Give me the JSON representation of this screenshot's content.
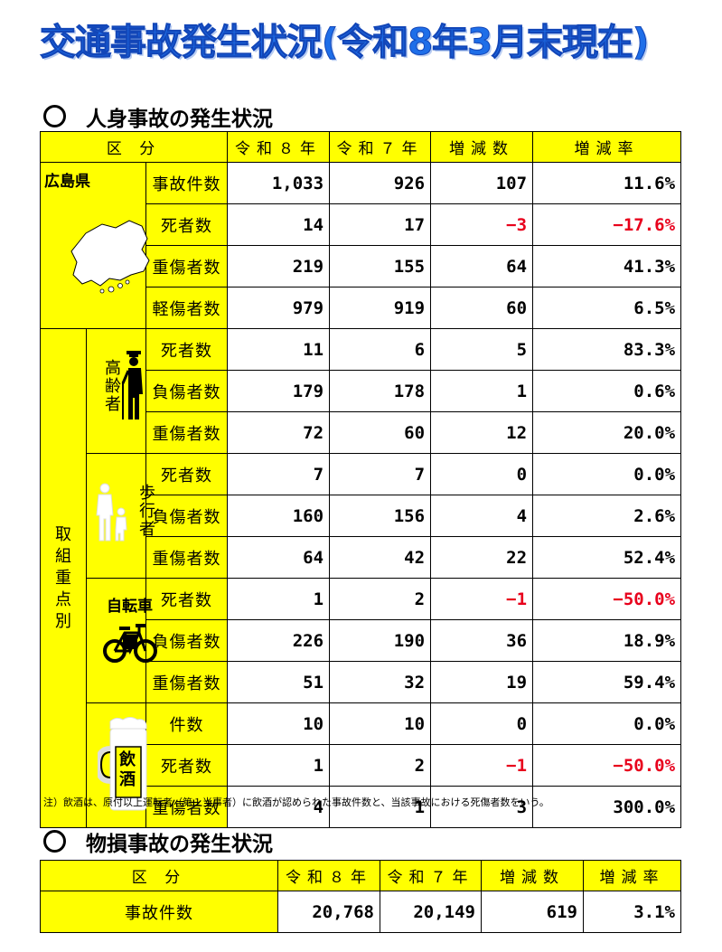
{
  "title": "交通事故発生状況(令和8年3月末現在)",
  "section1": "人身事故の発生状況",
  "section2": "物損事故の発生状況",
  "headers": {
    "category": "区 分",
    "r8": "令和８年",
    "r7": "令和７年",
    "diff": "増減数",
    "rate": "増減率"
  },
  "pref": {
    "name": "広島県",
    "rows": [
      {
        "label": "事故件数",
        "r8": "1,033",
        "r7": "926",
        "diff": "107",
        "rate": "11.6%"
      },
      {
        "label": "死者数",
        "r8": "14",
        "r7": "17",
        "diff": "−3",
        "rate": "−17.6%"
      },
      {
        "label": "重傷者数",
        "r8": "219",
        "r7": "155",
        "diff": "64",
        "rate": "41.3%"
      },
      {
        "label": "軽傷者数",
        "r8": "979",
        "r7": "919",
        "diff": "60",
        "rate": "6.5%"
      }
    ]
  },
  "focus_label": "取組重点別",
  "elderly": {
    "name": "高齢者",
    "rows": [
      {
        "label": "死者数",
        "r8": "11",
        "r7": "6",
        "diff": "5",
        "rate": "83.3%"
      },
      {
        "label": "負傷者数",
        "r8": "179",
        "r7": "178",
        "diff": "1",
        "rate": "0.6%"
      },
      {
        "label": "重傷者数",
        "r8": "72",
        "r7": "60",
        "diff": "12",
        "rate": "20.0%"
      }
    ]
  },
  "pedestrian": {
    "name": "歩行者",
    "rows": [
      {
        "label": "死者数",
        "r8": "7",
        "r7": "7",
        "diff": "0",
        "rate": "0.0%"
      },
      {
        "label": "負傷者数",
        "r8": "160",
        "r7": "156",
        "diff": "4",
        "rate": "2.6%"
      },
      {
        "label": "重傷者数",
        "r8": "64",
        "r7": "42",
        "diff": "22",
        "rate": "52.4%"
      }
    ]
  },
  "bicycle": {
    "name": "自転車",
    "rows": [
      {
        "label": "死者数",
        "r8": "1",
        "r7": "2",
        "diff": "−1",
        "rate": "−50.0%"
      },
      {
        "label": "負傷者数",
        "r8": "226",
        "r7": "190",
        "diff": "36",
        "rate": "18.9%"
      },
      {
        "label": "重傷者数",
        "r8": "51",
        "r7": "32",
        "diff": "19",
        "rate": "59.4%"
      }
    ]
  },
  "drunk": {
    "name": "飲酒",
    "rows": [
      {
        "label": "件数",
        "r8": "10",
        "r7": "10",
        "diff": "0",
        "rate": "0.0%"
      },
      {
        "label": "死者数",
        "r8": "1",
        "r7": "2",
        "diff": "−1",
        "rate": "−50.0%"
      },
      {
        "label": "重傷者数",
        "r8": "4",
        "r7": "1",
        "diff": "3",
        "rate": "300.0%"
      }
    ]
  },
  "note": "注）飲酒は、原付以上運転者（第１当事者）に飲酒が認められた事故件数と、当該事故における死傷者数をいう。",
  "property": {
    "label": "事故件数",
    "r8": "20,768",
    "r7": "20,149",
    "diff": "619",
    "rate": "3.1%"
  },
  "colors": {
    "title": "#1e6ee8",
    "highlight": "#ffff00",
    "negative": "#e8001c"
  }
}
